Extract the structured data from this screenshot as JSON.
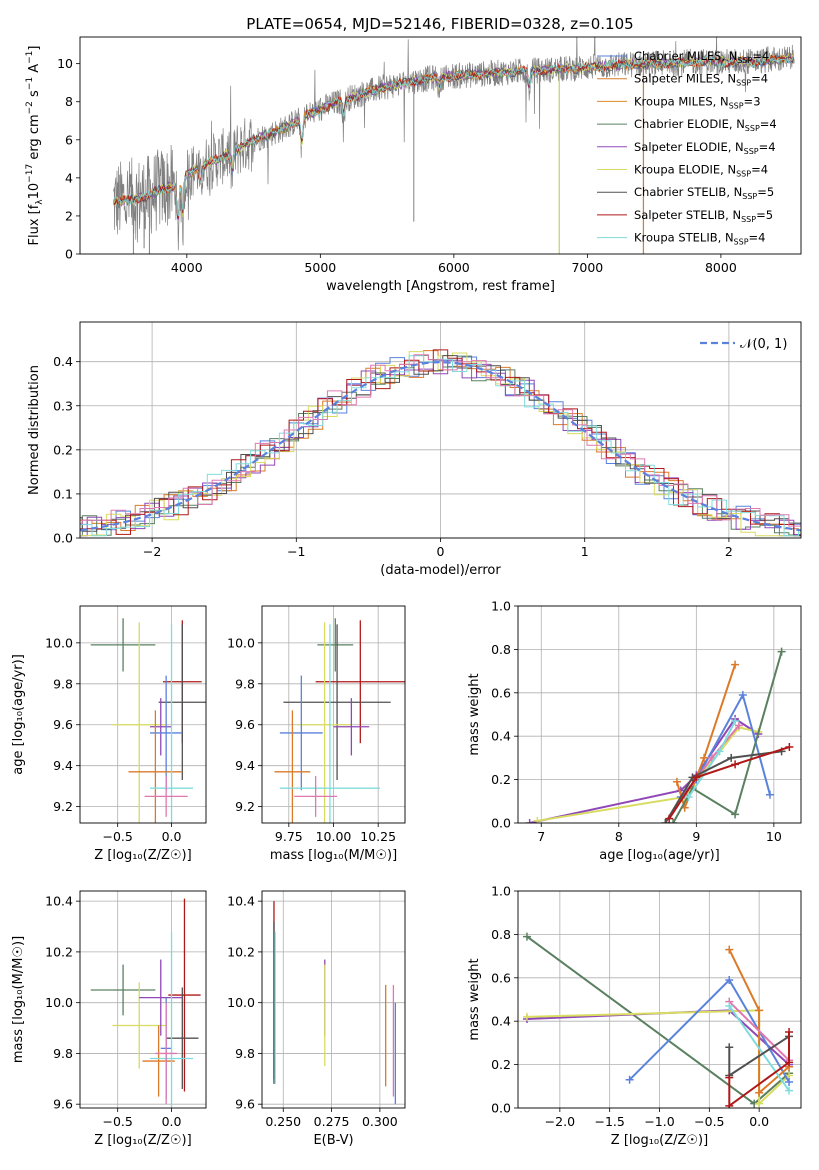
{
  "title": "PLATE=0654, MJD=52146, FIBERID=0328, z=0.105",
  "colors": {
    "c1": "#5a82dc",
    "c2": "#dc7a28",
    "c3": "#e08a28",
    "c4": "#5a8060",
    "c5": "#9048b8",
    "c6": "#d8dc60",
    "c7": "#505050",
    "c8": "#b01818",
    "c9": "#80dcdc",
    "data": "#808080",
    "pink": "#e078b0"
  },
  "chart_data": [
    {
      "type": "line",
      "id": "spectrum",
      "title": "PLATE=0654, MJD=52146, FIBERID=0328, z=0.105",
      "xlabel": "wavelength [Angstrom, rest frame]",
      "ylabel_main": "Flux [f",
      "ylabel_sub1": "λ",
      "ylabel_mid": "10",
      "ylabel_sup1": "−17",
      "ylabel_rest": " erg cm",
      "ylabel_sup2": "−2",
      "ylabel_s": " s",
      "ylabel_sup3": "−1",
      "ylabel_a": " A",
      "ylabel_sup4": "−1",
      "ylabel_end": "]",
      "xlim": [
        3200,
        8600
      ],
      "ylim": [
        0,
        11.4
      ],
      "xticks": [
        "4000",
        "5000",
        "6000",
        "7000",
        "8000"
      ],
      "xtick_values": [
        4000,
        5000,
        6000,
        7000,
        8000
      ],
      "yticks": [
        "0",
        "2",
        "4",
        "6",
        "8",
        "10"
      ],
      "ytick_values": [
        0,
        2,
        4,
        6,
        8,
        10
      ],
      "continuum": [
        [
          3450,
          2.7
        ],
        [
          3600,
          2.9
        ],
        [
          3700,
          3.0
        ],
        [
          3800,
          3.4
        ],
        [
          3900,
          3.6
        ],
        [
          4000,
          4.2
        ],
        [
          4100,
          4.6
        ],
        [
          4300,
          5.2
        ],
        [
          4500,
          6.0
        ],
        [
          4700,
          6.5
        ],
        [
          4900,
          7.3
        ],
        [
          5100,
          7.9
        ],
        [
          5300,
          8.4
        ],
        [
          5500,
          8.8
        ],
        [
          5700,
          9.1
        ],
        [
          5900,
          9.3
        ],
        [
          6100,
          9.4
        ],
        [
          6300,
          9.5
        ],
        [
          6500,
          9.6
        ],
        [
          6800,
          9.7
        ],
        [
          7000,
          9.8
        ],
        [
          7200,
          9.9
        ],
        [
          7400,
          10.0
        ],
        [
          7600,
          10.0
        ],
        [
          7800,
          10.1
        ],
        [
          8000,
          10.1
        ],
        [
          8200,
          10.1
        ],
        [
          8400,
          10.2
        ],
        [
          8550,
          10.3
        ]
      ],
      "series": [
        {
          "name": "Chabrier MILES, ",
          "nssp": "4",
          "color": "#5a82dc"
        },
        {
          "name": "Salpeter MILES, ",
          "nssp": "4",
          "color": "#dc7a28"
        },
        {
          "name": "Kroupa MILES, ",
          "nssp": "3",
          "color": "#e08a28"
        },
        {
          "name": "Chabrier ELODIE, ",
          "nssp": "4",
          "color": "#5a8060"
        },
        {
          "name": "Salpeter ELODIE, ",
          "nssp": "4",
          "color": "#9048b8"
        },
        {
          "name": "Kroupa ELODIE, ",
          "nssp": "4",
          "color": "#d8dc60"
        },
        {
          "name": "Chabrier STELIB, ",
          "nssp": "5",
          "color": "#505050"
        },
        {
          "name": "Salpeter STELIB, ",
          "nssp": "5",
          "color": "#b01818"
        },
        {
          "name": "Kroupa STELIB, ",
          "nssp": "4",
          "color": "#80dcdc"
        }
      ],
      "legend_n": "N",
      "legend_ssp": "SSP",
      "legend_eq": "="
    },
    {
      "type": "step",
      "id": "residuals",
      "xlabel": "(data-model)/error",
      "ylabel": "Normed distribution",
      "xlim": [
        -2.5,
        2.5
      ],
      "ylim": [
        0,
        0.49
      ],
      "xticks": [
        "−2",
        "−1",
        "0",
        "1",
        "2"
      ],
      "xtick_values": [
        -2,
        -1,
        0,
        1,
        2
      ],
      "yticks": [
        "0.0",
        "0.1",
        "0.2",
        "0.3",
        "0.4"
      ],
      "ytick_values": [
        0,
        0.1,
        0.2,
        0.3,
        0.4
      ],
      "legend": "𝒩(0, 1)",
      "gaussian_color": "#5a82dc"
    },
    {
      "type": "scatter",
      "id": "age-vs-Z",
      "xlabel": "Z [log₁₀(Z/Z☉)]",
      "ylabel": "age  [log₁₀(age/yr)]",
      "xlim": [
        -0.85,
        0.32
      ],
      "ylim": [
        9.12,
        10.18
      ],
      "xticks": [
        "−0.5",
        "0.0"
      ],
      "xtick_values": [
        -0.5,
        0.0
      ],
      "yticks": [
        "9.2",
        "9.4",
        "9.6",
        "9.8",
        "10.0"
      ],
      "ytick_values": [
        9.2,
        9.4,
        9.6,
        9.8,
        10.0
      ],
      "points": [
        {
          "x": -0.45,
          "xe": 0.3,
          "y": 9.99,
          "ye": 0.13,
          "c": "#5a8060"
        },
        {
          "x": 0.1,
          "xe": 0.18,
          "y": 9.81,
          "ye": 0.3,
          "c": "#b01818"
        },
        {
          "x": 0.1,
          "xe": 0.22,
          "y": 9.71,
          "ye": 0.38,
          "c": "#505050"
        },
        {
          "x": -0.3,
          "xe": 0.25,
          "y": 9.6,
          "ye": 0.5,
          "c": "#d8dc60"
        },
        {
          "x": -0.1,
          "xe": 0.1,
          "y": 9.59,
          "ye": 0.14,
          "c": "#9048b8"
        },
        {
          "x": -0.05,
          "xe": 0.15,
          "y": 9.56,
          "ye": 0.28,
          "c": "#5a82dc"
        },
        {
          "x": -0.15,
          "xe": 0.25,
          "y": 9.37,
          "ye": 0.3,
          "c": "#dc7a28"
        },
        {
          "x": 0.0,
          "xe": 0.2,
          "y": 9.29,
          "ye": 0.8,
          "c": "#80dcdc"
        },
        {
          "x": -0.05,
          "xe": 0.2,
          "y": 9.25,
          "ye": 0.1,
          "c": "#e078b0"
        }
      ]
    },
    {
      "type": "scatter",
      "id": "age-vs-mass",
      "xlabel": "mass [log₁₀(M/M☉)]",
      "xlim": [
        9.6,
        10.4
      ],
      "ylim": [
        9.12,
        10.18
      ],
      "xticks": [
        "9.75",
        "10.00",
        "10.25"
      ],
      "xtick_values": [
        9.75,
        10.0,
        10.25
      ],
      "yticks": [
        "9.2",
        "9.4",
        "9.6",
        "9.8",
        "10.0"
      ],
      "ytick_values": [
        9.2,
        9.4,
        9.6,
        9.8,
        10.0
      ],
      "points": [
        {
          "x": 10.01,
          "xe": 0.1,
          "y": 9.99,
          "ye": 0.13,
          "c": "#5a8060"
        },
        {
          "x": 10.15,
          "xe": 0.25,
          "y": 9.81,
          "ye": 0.3,
          "c": "#b01818"
        },
        {
          "x": 10.02,
          "xe": 0.3,
          "y": 9.71,
          "ye": 0.38,
          "c": "#505050"
        },
        {
          "x": 9.95,
          "xe": 0.15,
          "y": 9.6,
          "ye": 0.5,
          "c": "#d8dc60"
        },
        {
          "x": 10.1,
          "xe": 0.1,
          "y": 9.59,
          "ye": 0.14,
          "c": "#9048b8"
        },
        {
          "x": 9.82,
          "xe": 0.12,
          "y": 9.56,
          "ye": 0.28,
          "c": "#5a82dc"
        },
        {
          "x": 9.77,
          "xe": 0.1,
          "y": 9.37,
          "ye": 0.3,
          "c": "#dc7a28"
        },
        {
          "x": 9.98,
          "xe": 0.28,
          "y": 9.29,
          "ye": 0.8,
          "c": "#80dcdc"
        },
        {
          "x": 9.9,
          "xe": 0.12,
          "y": 9.25,
          "ye": 0.1,
          "c": "#e078b0"
        }
      ]
    },
    {
      "type": "line",
      "id": "weight-vs-age",
      "xlabel": "age  [log₁₀(age/yr)]",
      "ylabel": "mass weight",
      "xlim": [
        6.7,
        10.35
      ],
      "ylim": [
        0,
        1.0
      ],
      "xticks": [
        "7",
        "8",
        "9",
        "10"
      ],
      "xtick_values": [
        7,
        8,
        9,
        10
      ],
      "yticks": [
        "0.0",
        "0.2",
        "0.4",
        "0.6",
        "0.8",
        "1.0"
      ],
      "ytick_values": [
        0,
        0.2,
        0.4,
        0.6,
        0.8,
        1.0
      ],
      "series": [
        {
          "c": "#9048b8",
          "pts": [
            [
              6.85,
              0.0
            ],
            [
              8.8,
              0.15
            ],
            [
              9.0,
              0.22
            ],
            [
              9.5,
              0.48
            ],
            [
              9.8,
              0.41
            ]
          ]
        },
        {
          "c": "#d8dc60",
          "pts": [
            [
              6.95,
              0.01
            ],
            [
              8.85,
              0.12
            ],
            [
              8.95,
              0.17
            ],
            [
              9.55,
              0.44
            ],
            [
              9.8,
              0.42
            ]
          ]
        },
        {
          "c": "#5a82dc",
          "pts": [
            [
              8.8,
              0.12
            ],
            [
              9.0,
              0.2
            ],
            [
              9.6,
              0.59
            ],
            [
              9.95,
              0.13
            ]
          ]
        },
        {
          "c": "#dc7a28",
          "pts": [
            [
              8.75,
              0.19
            ],
            [
              8.85,
              0.07
            ],
            [
              9.1,
              0.3
            ],
            [
              9.5,
              0.73
            ]
          ]
        },
        {
          "c": "#5a8060",
          "pts": [
            [
              8.7,
              0.0
            ],
            [
              8.95,
              0.16
            ],
            [
              9.5,
              0.04
            ],
            [
              10.1,
              0.79
            ]
          ]
        },
        {
          "c": "#e078b0",
          "pts": [
            [
              8.85,
              0.13
            ],
            [
              9.2,
              0.3
            ],
            [
              9.55,
              0.45
            ]
          ]
        },
        {
          "c": "#80dcdc",
          "pts": [
            [
              8.9,
              0.12
            ],
            [
              9.3,
              0.33
            ],
            [
              9.5,
              0.47
            ]
          ]
        },
        {
          "c": "#505050",
          "pts": [
            [
              8.6,
              0.0
            ],
            [
              8.95,
              0.21
            ],
            [
              9.45,
              0.3
            ],
            [
              10.1,
              0.33
            ]
          ]
        },
        {
          "c": "#b01818",
          "pts": [
            [
              8.65,
              0.02
            ],
            [
              9.0,
              0.21
            ],
            [
              9.5,
              0.27
            ],
            [
              10.2,
              0.35
            ]
          ]
        }
      ]
    },
    {
      "type": "scatter",
      "id": "mass-vs-Z",
      "xlabel": "Z [log₁₀(Z/Z☉)]",
      "ylabel": "mass [log₁₀(M/M☉)]",
      "xlim": [
        -0.85,
        0.32
      ],
      "ylim": [
        9.585,
        10.44
      ],
      "xticks": [
        "−0.5",
        "0.0"
      ],
      "xtick_values": [
        -0.5,
        0.0
      ],
      "yticks": [
        "9.6",
        "9.8",
        "10.0",
        "10.2",
        "10.4"
      ],
      "ytick_values": [
        9.6,
        9.8,
        10.0,
        10.2,
        10.4
      ],
      "points": [
        {
          "x": -0.45,
          "xe": 0.3,
          "y": 10.05,
          "ye": 0.1,
          "c": "#5a8060"
        },
        {
          "x": 0.12,
          "xe": 0.15,
          "y": 10.03,
          "ye": 0.38,
          "c": "#b01818"
        },
        {
          "x": 0.1,
          "xe": 0.15,
          "y": 9.86,
          "ye": 0.2,
          "c": "#505050"
        },
        {
          "x": -0.3,
          "xe": 0.25,
          "y": 9.91,
          "ye": 0.17,
          "c": "#d8dc60"
        },
        {
          "x": -0.1,
          "xe": 0.2,
          "y": 10.02,
          "ye": 0.15,
          "c": "#9048b8"
        },
        {
          "x": -0.05,
          "xe": 0.05,
          "y": 9.82,
          "ye": 0.2,
          "c": "#5a82dc"
        },
        {
          "x": -0.12,
          "xe": 0.15,
          "y": 9.77,
          "ye": 0.14,
          "c": "#dc7a28"
        },
        {
          "x": 0.0,
          "xe": 0.2,
          "y": 9.78,
          "ye": 0.5,
          "c": "#80dcdc"
        },
        {
          "x": -0.05,
          "xe": 0.1,
          "y": 9.8,
          "ye": 0.2,
          "c": "#e078b0"
        }
      ]
    },
    {
      "type": "scatter",
      "id": "mass-vs-ebv",
      "xlabel": "E(B-V)",
      "xlim": [
        0.239,
        0.313
      ],
      "ylim": [
        9.585,
        10.44
      ],
      "xticks": [
        "0.250",
        "0.275",
        "0.300"
      ],
      "xtick_values": [
        0.25,
        0.275,
        0.3
      ],
      "yticks": [
        "9.6",
        "9.8",
        "10.0",
        "10.2",
        "10.4"
      ],
      "ytick_values": [
        9.6,
        9.8,
        10.0,
        10.2,
        10.4
      ],
      "points": [
        {
          "x": 0.2452,
          "xe": 0.0,
          "y": 10.05,
          "ye": 0.35,
          "c": "#b01818"
        },
        {
          "x": 0.2452,
          "xe": 0.0,
          "y": 10.0,
          "ye": 0.32,
          "c": "#505050"
        },
        {
          "x": 0.2458,
          "xe": 0.0,
          "y": 9.98,
          "ye": 0.3,
          "c": "#80dcdc"
        },
        {
          "x": 0.2715,
          "xe": 0.0,
          "y": 10.02,
          "ye": 0.15,
          "c": "#9048b8"
        },
        {
          "x": 0.2715,
          "xe": 0.0,
          "y": 9.95,
          "ye": 0.2,
          "c": "#d8dc60"
        },
        {
          "x": 0.303,
          "xe": 0.0,
          "y": 9.87,
          "ye": 0.2,
          "c": "#dc7a28"
        },
        {
          "x": 0.308,
          "xe": 0.0,
          "y": 9.8,
          "ye": 0.2,
          "c": "#5a82dc"
        },
        {
          "x": 0.307,
          "xe": 0.0,
          "y": 9.85,
          "ye": 0.22,
          "c": "#e078b0"
        }
      ]
    },
    {
      "type": "line",
      "id": "weight-vs-Z",
      "xlabel": "Z [log₁₀(Z/Z☉)]",
      "ylabel": "mass weight",
      "xlim": [
        -2.42,
        0.42
      ],
      "ylim": [
        0,
        1.0
      ],
      "xticks": [
        "−2.0",
        "−1.5",
        "−1.0",
        "−0.5",
        "0.0"
      ],
      "xtick_values": [
        -2.0,
        -1.5,
        -1.0,
        -0.5,
        0.0
      ],
      "yticks": [
        "0.0",
        "0.2",
        "0.4",
        "0.6",
        "0.8",
        "1.0"
      ],
      "ytick_values": [
        0,
        0.2,
        0.4,
        0.6,
        0.8,
        1.0
      ],
      "series": [
        {
          "c": "#5a8060",
          "pts": [
            [
              -2.33,
              0.79
            ],
            [
              -0.05,
              0.02
            ],
            [
              0.3,
              0.16
            ]
          ]
        },
        {
          "c": "#9048b8",
          "pts": [
            [
              -2.33,
              0.41
            ],
            [
              -0.3,
              0.45
            ],
            [
              0.3,
              0.2
            ]
          ]
        },
        {
          "c": "#d8dc60",
          "pts": [
            [
              -2.33,
              0.42
            ],
            [
              0.0,
              0.45
            ],
            [
              0.0,
              0.02
            ],
            [
              0.3,
              0.15
            ]
          ]
        },
        {
          "c": "#5a82dc",
          "pts": [
            [
              -1.3,
              0.13
            ],
            [
              -0.3,
              0.59
            ],
            [
              0.3,
              0.12
            ]
          ]
        },
        {
          "c": "#dc7a28",
          "pts": [
            [
              -0.3,
              0.73
            ],
            [
              0.0,
              0.45
            ],
            [
              0.0,
              0.07
            ],
            [
              0.3,
              0.19
            ]
          ]
        },
        {
          "c": "#e078b0",
          "pts": [
            [
              -0.3,
              0.49
            ],
            [
              0.3,
              0.22
            ]
          ]
        },
        {
          "c": "#80dcdc",
          "pts": [
            [
              -0.3,
              0.47
            ],
            [
              0.3,
              0.08
            ]
          ]
        },
        {
          "c": "#505050",
          "pts": [
            [
              -0.3,
              0.28
            ],
            [
              -0.3,
              0.15
            ],
            [
              0.3,
              0.33
            ]
          ]
        },
        {
          "c": "#b01818",
          "pts": [
            [
              -0.3,
              0.14
            ],
            [
              -0.3,
              0.01
            ],
            [
              0.3,
              0.21
            ],
            [
              0.3,
              0.35
            ]
          ]
        }
      ]
    }
  ]
}
